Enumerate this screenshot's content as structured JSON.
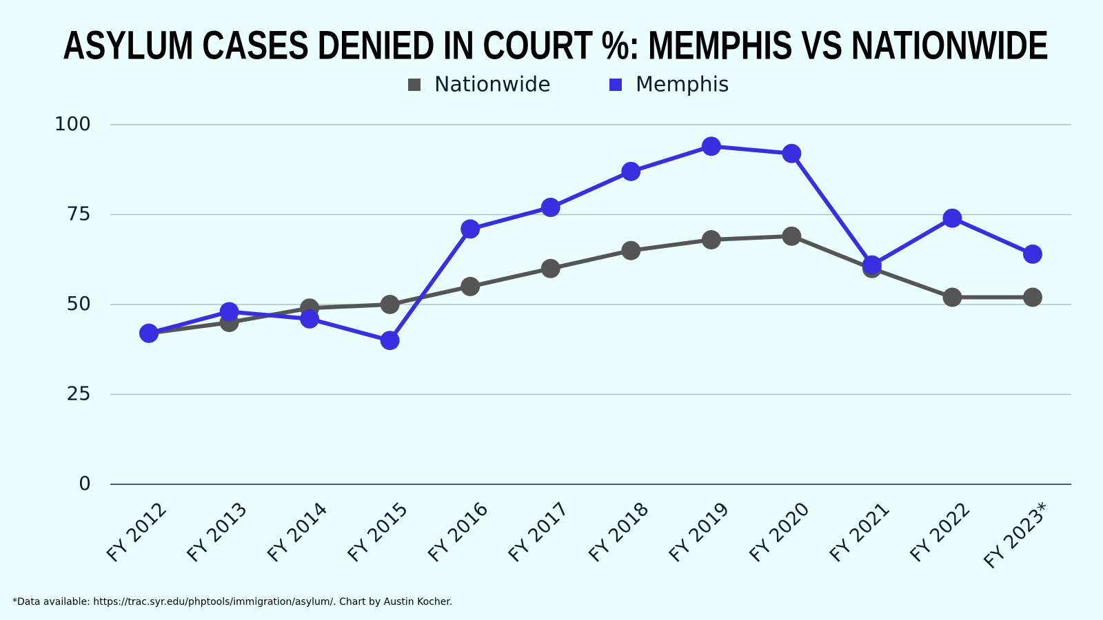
{
  "chart_data": {
    "type": "line",
    "title": "ASYLUM CASES DENIED IN COURT %: MEMPHIS VS NATIONWIDE",
    "categories": [
      "FY 2012",
      "FY 2013",
      "FY 2014",
      "FY 2015",
      "FY 2016",
      "FY 2017",
      "FY 2018",
      "FY 2019",
      "FY 2020",
      "FY 2021",
      "FY 2022",
      "FY 2023*"
    ],
    "series": [
      {
        "name": "Nationwide",
        "color": "#555555",
        "values": [
          42,
          45,
          49,
          50,
          55,
          60,
          65,
          68,
          69,
          60,
          52,
          52
        ]
      },
      {
        "name": "Memphis",
        "color": "#3a2fe0",
        "values": [
          42,
          48,
          46,
          40,
          71,
          77,
          87,
          94,
          92,
          61,
          74,
          64
        ]
      }
    ],
    "ylim": [
      0,
      100
    ],
    "yticks": [
      0,
      25,
      50,
      75,
      100
    ],
    "grid": true,
    "legend": "top",
    "footnote": "*Data available: https://trac.syr.edu/phptools/immigration/asylum/. Chart by Austin Kocher."
  }
}
